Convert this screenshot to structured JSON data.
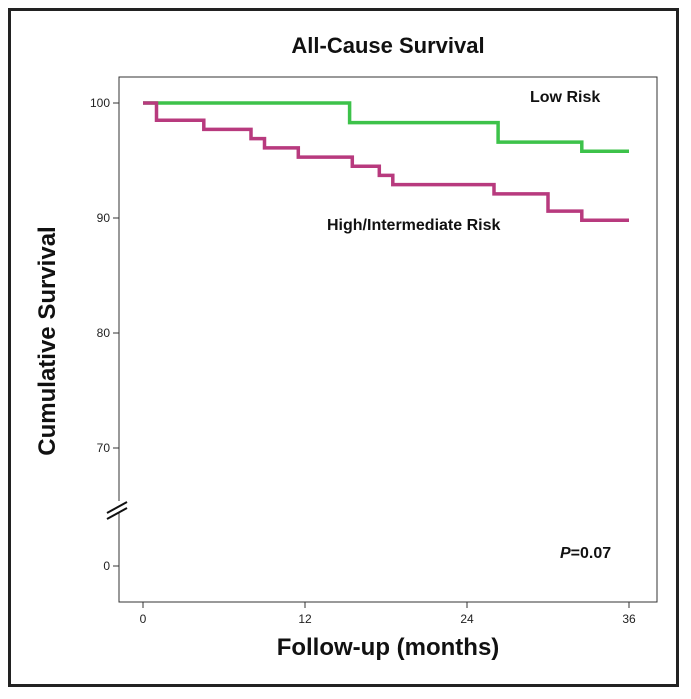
{
  "chart_data": {
    "type": "line",
    "step": true,
    "title": "All-Cause Survival",
    "xlabel": "Follow-up (months)",
    "ylabel": "Cumulative Survival",
    "xlim": [
      0,
      36
    ],
    "xticks": [
      0,
      12,
      24,
      36
    ],
    "yticks_upper": [
      70,
      80,
      90,
      100
    ],
    "ytick_lower": 0,
    "axis_break": true,
    "annotation": {
      "italic": "P",
      "rest": "=0.07"
    },
    "series": [
      {
        "name": "Low Risk",
        "color": "#3dc24a",
        "x": [
          0,
          15.3,
          15.3,
          26.3,
          26.3,
          32.5,
          32.5,
          36
        ],
        "y": [
          100,
          100,
          98.3,
          98.3,
          96.6,
          96.6,
          95.8,
          95.8
        ]
      },
      {
        "name": "High/Intermediate Risk",
        "color": "#b83a7e",
        "x": [
          0,
          1.0,
          1.0,
          4.5,
          4.5,
          8.0,
          8.0,
          9.0,
          9.0,
          11.5,
          11.5,
          15.5,
          15.5,
          17.5,
          17.5,
          18.5,
          18.5,
          26.0,
          26.0,
          30.0,
          30.0,
          32.5,
          32.5,
          36
        ],
        "y": [
          100,
          100,
          98.5,
          98.5,
          97.7,
          97.7,
          96.9,
          96.9,
          96.1,
          96.1,
          95.3,
          95.3,
          94.5,
          94.5,
          93.7,
          93.7,
          92.9,
          92.9,
          92.1,
          92.1,
          90.6,
          90.6,
          89.8,
          89.8
        ]
      }
    ]
  }
}
